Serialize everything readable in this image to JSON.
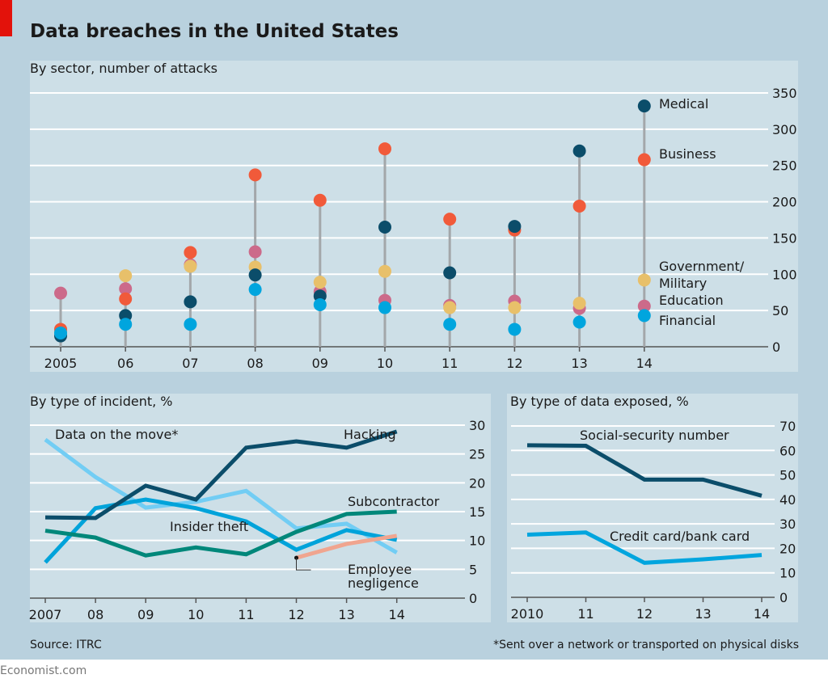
{
  "title": "Data breaches in the United States",
  "source": "Source: ITRC",
  "footnote": "*Sent over a network or transported on physical disks",
  "footer": "Economist.com",
  "colors": {
    "background": "#b9d1de",
    "panel": "#cddfe7",
    "accent_red": "#e3120b"
  },
  "chart_data": [
    {
      "type": "scatter",
      "title": "By sector, number of attacks",
      "categories": [
        "2005",
        "06",
        "07",
        "08",
        "09",
        "10",
        "11",
        "12",
        "13",
        "14"
      ],
      "ylim": [
        0,
        350
      ],
      "yticks": [
        0,
        50,
        100,
        150,
        200,
        250,
        300,
        350
      ],
      "grid": true,
      "series": [
        {
          "name": "Medical",
          "color": "#0b4d6a",
          "values": [
            15,
            43,
            62,
            99,
            70,
            165,
            102,
            166,
            270,
            332
          ]
        },
        {
          "name": "Business",
          "color": "#f15a3a",
          "values": [
            24,
            66,
            130,
            237,
            202,
            273,
            176,
            161,
            194,
            258
          ]
        },
        {
          "name": "Education",
          "color": "#cc6a8a",
          "values": [
            74,
            80,
            113,
            131,
            76,
            64,
            57,
            63,
            53,
            56
          ]
        },
        {
          "name": "Government/ Military",
          "color": "#e8c06a",
          "values": [
            20,
            98,
            111,
            110,
            89,
            104,
            54,
            54,
            60,
            92
          ]
        },
        {
          "name": "Financial",
          "color": "#00a5de",
          "values": [
            19,
            31,
            31,
            79,
            58,
            54,
            31,
            24,
            34,
            43
          ]
        }
      ]
    },
    {
      "type": "line",
      "title": "By type of incident, %",
      "categories": [
        "2007",
        "08",
        "09",
        "10",
        "11",
        "12",
        "13",
        "14"
      ],
      "ylim": [
        0,
        30
      ],
      "yticks": [
        0,
        5,
        10,
        15,
        20,
        25,
        30
      ],
      "grid": true,
      "series": [
        {
          "name": "Data on the move*",
          "color": "#72cdf4",
          "values": [
            27.5,
            21.0,
            15.7,
            16.7,
            18.6,
            12.1,
            12.9,
            7.9
          ]
        },
        {
          "name": "Insider theft",
          "color": "#00a3da",
          "values": [
            6.2,
            15.6,
            17.1,
            15.6,
            13.3,
            8.4,
            11.8,
            10.1
          ]
        },
        {
          "name": "Subcontractor",
          "color": "#00877a",
          "values": [
            11.7,
            10.5,
            7.4,
            8.8,
            7.6,
            11.5,
            14.6,
            15.0
          ]
        },
        {
          "name": "Hacking",
          "color": "#0b4d6a",
          "values": [
            14.0,
            13.9,
            19.5,
            17.1,
            26.1,
            27.2,
            26.1,
            28.9
          ]
        },
        {
          "name": "Employee negligence",
          "color": "#f0a58f",
          "values": [
            null,
            null,
            null,
            null,
            null,
            7.0,
            9.4,
            10.8
          ]
        }
      ]
    },
    {
      "type": "line",
      "title": "By type of data exposed, %",
      "categories": [
        "2010",
        "11",
        "12",
        "13",
        "14"
      ],
      "ylim": [
        0,
        70
      ],
      "yticks": [
        0,
        10,
        20,
        30,
        40,
        50,
        60,
        70
      ],
      "grid": true,
      "series": [
        {
          "name": "Social-security number",
          "color": "#0b4d6a",
          "values": [
            62.1,
            61.9,
            48.1,
            48.1,
            41.5
          ]
        },
        {
          "name": "Credit card/bank card",
          "color": "#00a5de",
          "values": [
            25.6,
            26.5,
            14.1,
            15.5,
            17.3
          ]
        }
      ]
    }
  ]
}
